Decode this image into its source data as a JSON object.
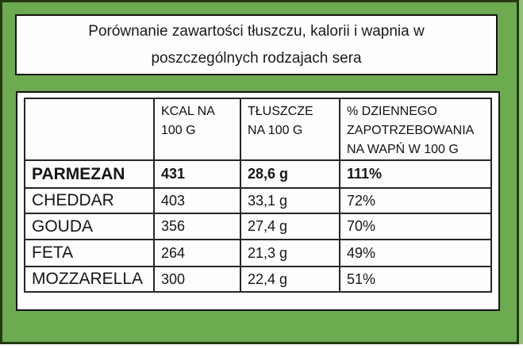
{
  "title": {
    "line1": "Porównanie zawartości tłuszczu, kalorii i wapnia w",
    "line2": "poszczególnych rodzajach sera"
  },
  "colors": {
    "background_green": "#6cab50",
    "outer_border": "#24390f",
    "box_border": "#131313",
    "table_grid": "#262626",
    "panel_white": "#fdfdfd"
  },
  "table": {
    "columns": [
      "",
      "KCAL NA 100 G",
      "TŁUSZCZE NA 100 G",
      "% DZIENNEGO ZAPOTRZEBOWANIA NA WAPŃ W 100 G"
    ],
    "rows": [
      {
        "cells": [
          "PARMEZAN",
          "431",
          "28,6 g",
          "111%"
        ],
        "bold": true
      },
      {
        "cells": [
          "CHEDDAR",
          "403",
          "33,1 g",
          "72%"
        ],
        "bold": false
      },
      {
        "cells": [
          "GOUDA",
          "356",
          "27,4 g",
          "70%"
        ],
        "bold": false
      },
      {
        "cells": [
          "FETA",
          "264",
          "21,3 g",
          "49%"
        ],
        "bold": false
      },
      {
        "cells": [
          "MOZZARELLA",
          "300",
          "22,4 g",
          "51%"
        ],
        "bold": false
      }
    ]
  }
}
